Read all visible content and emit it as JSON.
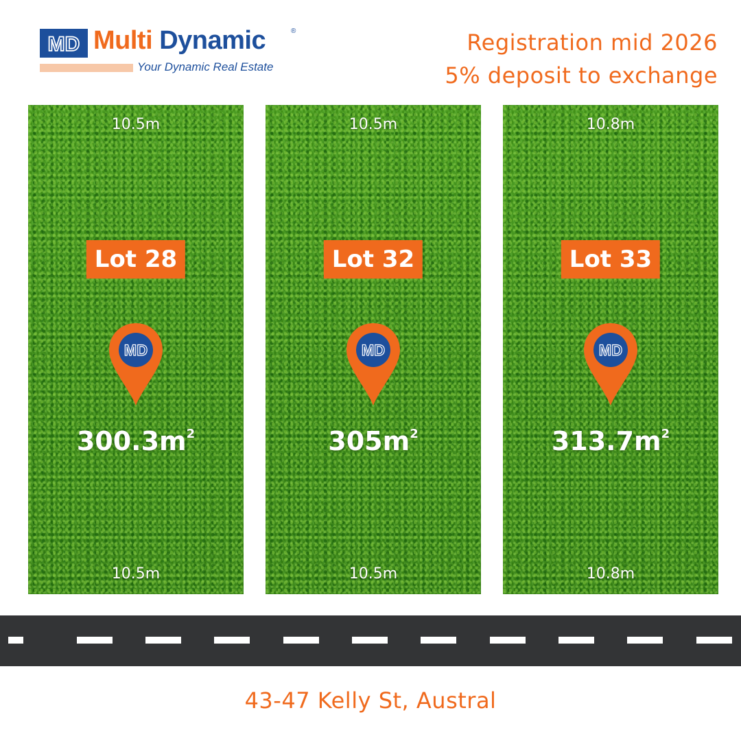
{
  "brand": {
    "name_first": "Multi",
    "name_second": "Dynamic",
    "registered": "®",
    "tagline": "Your Dynamic Real Estate",
    "mark_icon": "md-monogram-icon",
    "colors": {
      "primary": "#1d4f9c",
      "accent": "#f06a1d",
      "accent_light": "#f7c8a8"
    }
  },
  "headline": {
    "line1": "Registration mid 2026",
    "line2": "5% deposit to exchange"
  },
  "lots": [
    {
      "label": "Lot 28",
      "area": "300.3m",
      "area_unit_sup": "2",
      "front_top": "10.5m",
      "front_bottom": "10.5m",
      "pin_icon": "location-pin-icon"
    },
    {
      "label": "Lot 32",
      "area": "305m",
      "area_unit_sup": "2",
      "front_top": "10.5m",
      "front_bottom": "10.5m",
      "pin_icon": "location-pin-icon"
    },
    {
      "label": "Lot 33",
      "area": "313.7m",
      "area_unit_sup": "2",
      "front_top": "10.8m",
      "front_bottom": "10.8m",
      "pin_icon": "location-pin-icon"
    }
  ],
  "address": "43-47 Kelly St, Austral"
}
